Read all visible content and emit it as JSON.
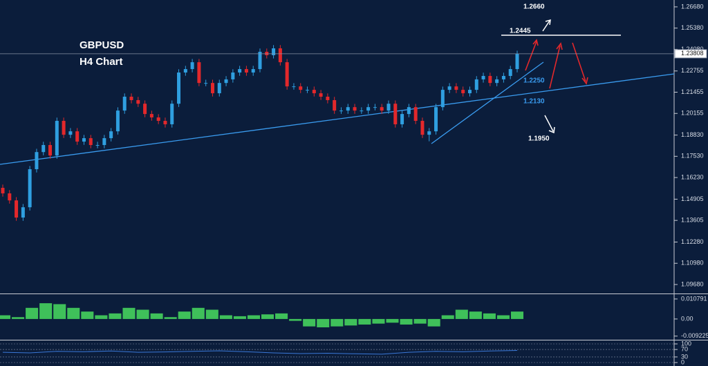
{
  "chart_data": [
    {
      "type": "candlestick",
      "title": "GBPUSD",
      "subtitle": "H4 Chart",
      "annotations": [
        "1.2660",
        "1.2445",
        "1.2250",
        "1.2130",
        "1.1950"
      ],
      "up_color": "#2f9fe0",
      "down_color": "#e3282b",
      "ylim": [
        1.0913,
        1.271
      ],
      "yticks": [
        {
          "value": 1.2668,
          "label": "1.26680"
        },
        {
          "value": 1.2538,
          "label": "1.25380"
        },
        {
          "value": 1.2408,
          "label": "1.24080"
        },
        1.22755,
        1.21455,
        1.20155,
        {
          "value": 1.1883,
          "label": "1.18830"
        },
        {
          "value": 1.1753,
          "label": "1.17530"
        },
        {
          "value": 1.1623,
          "label": "1.16230"
        },
        1.14905,
        1.13605,
        {
          "value": 1.1228,
          "label": "1.12280"
        },
        {
          "value": 1.1098,
          "label": "1.10980"
        },
        {
          "value": 1.0968,
          "label": "1.09680"
        }
      ],
      "last_price": {
        "value": 1.23808,
        "label": "1.23808"
      },
      "ohlc": [
        [
          1.156,
          1.158,
          1.1506,
          1.1526
        ],
        [
          1.1526,
          1.1546,
          1.1463,
          1.1483
        ],
        [
          1.1483,
          1.1503,
          1.1358,
          1.1378
        ],
        [
          1.1378,
          1.1461,
          1.1358,
          1.1441
        ],
        [
          1.1441,
          1.1694,
          1.1421,
          1.1674
        ],
        [
          1.1674,
          1.1799,
          1.1654,
          1.1779
        ],
        [
          1.1779,
          1.1842,
          1.1759,
          1.1822
        ],
        [
          1.1822,
          1.1842,
          1.1738,
          1.1758
        ],
        [
          1.1758,
          1.199,
          1.1738,
          1.197
        ],
        [
          1.197,
          1.199,
          1.1865,
          1.1885
        ],
        [
          1.1885,
          1.1926,
          1.1865,
          1.1906
        ],
        [
          1.1906,
          1.1926,
          1.1823,
          1.1843
        ],
        [
          1.1843,
          1.1884,
          1.1823,
          1.1864
        ],
        [
          1.1864,
          1.1884,
          1.1802,
          1.1822
        ],
        [
          1.1822,
          1.1842,
          1.1802,
          1.1822
        ],
        [
          1.1822,
          1.1884,
          1.1802,
          1.1864
        ],
        [
          1.1864,
          1.1926,
          1.1844,
          1.1906
        ],
        [
          1.1906,
          1.2053,
          1.1886,
          1.2033
        ],
        [
          1.2033,
          1.2138,
          1.2013,
          1.2118
        ],
        [
          1.2118,
          1.2138,
          1.2077,
          1.2097
        ],
        [
          1.2097,
          1.2117,
          1.2055,
          1.2075
        ],
        [
          1.2075,
          1.2095,
          1.1992,
          1.2012
        ],
        [
          1.2012,
          1.2032,
          1.1971,
          1.1991
        ],
        [
          1.1991,
          1.2011,
          1.195,
          1.197
        ],
        [
          1.197,
          1.199,
          1.1929,
          1.1949
        ],
        [
          1.1949,
          1.2095,
          1.1929,
          1.2075
        ],
        [
          1.2075,
          1.2286,
          1.2055,
          1.2266
        ],
        [
          1.2266,
          1.2307,
          1.2246,
          1.2287
        ],
        [
          1.2287,
          1.2349,
          1.2267,
          1.2329
        ],
        [
          1.2329,
          1.2349,
          1.2182,
          1.2202
        ],
        [
          1.2202,
          1.2222,
          1.2182,
          1.2202
        ],
        [
          1.2202,
          1.2222,
          1.2119,
          1.2139
        ],
        [
          1.2139,
          1.2222,
          1.2119,
          1.2202
        ],
        [
          1.2202,
          1.2244,
          1.2182,
          1.2224
        ],
        [
          1.2224,
          1.2286,
          1.2204,
          1.2266
        ],
        [
          1.2266,
          1.2307,
          1.2246,
          1.2287
        ],
        [
          1.2287,
          1.2307,
          1.2246,
          1.2266
        ],
        [
          1.2266,
          1.2307,
          1.2246,
          1.2287
        ],
        [
          1.2287,
          1.2413,
          1.2267,
          1.2393
        ],
        [
          1.2393,
          1.2413,
          1.2352,
          1.2372
        ],
        [
          1.2372,
          1.2434,
          1.2352,
          1.2414
        ],
        [
          1.2414,
          1.2434,
          1.2309,
          1.2329
        ],
        [
          1.2329,
          1.2349,
          1.2161,
          1.2181
        ],
        [
          1.2181,
          1.2201,
          1.2161,
          1.2181
        ],
        [
          1.2181,
          1.2201,
          1.214,
          1.216
        ],
        [
          1.216,
          1.218,
          1.214,
          1.216
        ],
        [
          1.216,
          1.218,
          1.2119,
          1.2139
        ],
        [
          1.2139,
          1.2159,
          1.2098,
          1.2118
        ],
        [
          1.2118,
          1.2138,
          1.2077,
          1.2097
        ],
        [
          1.2097,
          1.2117,
          1.2013,
          1.2033
        ],
        [
          1.2033,
          1.2053,
          1.2013,
          1.2033
        ],
        [
          1.2033,
          1.2074,
          1.2013,
          1.2054
        ],
        [
          1.2054,
          1.2074,
          1.2013,
          1.2033
        ],
        [
          1.2033,
          1.2053,
          1.2013,
          1.2033
        ],
        [
          1.2033,
          1.2074,
          1.2013,
          1.2054
        ],
        [
          1.2054,
          1.2074,
          1.2034,
          1.2054
        ],
        [
          1.2054,
          1.2074,
          1.2013,
          1.2033
        ],
        [
          1.2033,
          1.2095,
          1.2013,
          1.2075
        ],
        [
          1.2075,
          1.2095,
          1.1929,
          1.1949
        ],
        [
          1.1949,
          1.2032,
          1.1929,
          1.2012
        ],
        [
          1.2012,
          1.2074,
          1.1992,
          1.2054
        ],
        [
          1.2054,
          1.2074,
          1.195,
          1.197
        ],
        [
          1.197,
          1.199,
          1.1865,
          1.1885
        ],
        [
          1.1885,
          1.1926,
          1.1845,
          1.1906
        ],
        [
          1.1906,
          1.2074,
          1.1886,
          1.2054
        ],
        [
          1.2054,
          1.218,
          1.2034,
          1.216
        ],
        [
          1.216,
          1.2201,
          1.214,
          1.2181
        ],
        [
          1.2181,
          1.2201,
          1.214,
          1.216
        ],
        [
          1.216,
          1.218,
          1.2119,
          1.2139
        ],
        [
          1.2139,
          1.218,
          1.2119,
          1.216
        ],
        [
          1.216,
          1.2244,
          1.214,
          1.2224
        ],
        [
          1.2224,
          1.2265,
          1.2204,
          1.2245
        ],
        [
          1.2245,
          1.2265,
          1.2182,
          1.2202
        ],
        [
          1.2202,
          1.2244,
          1.2182,
          1.2224
        ],
        [
          1.2224,
          1.2265,
          1.2204,
          1.2245
        ],
        [
          1.2245,
          1.2307,
          1.2225,
          1.2287
        ],
        [
          1.2287,
          1.24,
          1.2267,
          1.238
        ]
      ]
    },
    {
      "type": "bar",
      "color": "#3fc05a",
      "ylim": [
        -0.0112,
        0.013
      ],
      "yticks": [
        0.010791,
        {
          "value": 0,
          "label": "0.00"
        },
        -0.009225
      ],
      "values": [
        0.002,
        0.001,
        0.006,
        0.0085,
        0.008,
        0.006,
        0.004,
        0.002,
        0.003,
        0.006,
        0.005,
        0.003,
        0.001,
        0.004,
        0.006,
        0.005,
        0.002,
        0.0015,
        0.002,
        0.0025,
        0.003,
        -0.001,
        -0.004,
        -0.0045,
        -0.004,
        -0.0035,
        -0.003,
        -0.0025,
        -0.002,
        -0.003,
        -0.0025,
        -0.004,
        0.002,
        0.005,
        0.004,
        0.003,
        0.002,
        0.004
      ]
    },
    {
      "type": "line",
      "color": "#3a78d8",
      "ylim": [
        -18.5,
        114.8
      ],
      "yticks": [
        100,
        70,
        30,
        0
      ],
      "values": [
        55,
        52,
        60,
        58,
        62,
        55,
        57,
        60,
        63,
        58,
        52,
        48,
        50,
        47,
        45,
        55,
        60,
        58,
        62,
        65
      ]
    }
  ]
}
